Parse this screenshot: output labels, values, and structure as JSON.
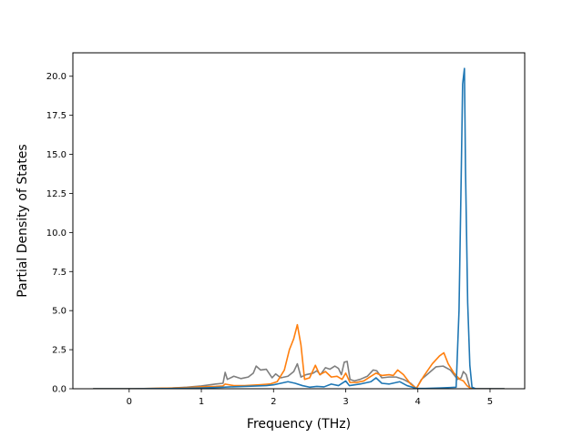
{
  "chart_data": {
    "type": "line",
    "title": "",
    "xlabel": "Frequency (THz)",
    "ylabel": "Partial Density of States",
    "xlim": [
      -0.78,
      5.48
    ],
    "ylim": [
      0,
      21.5
    ],
    "xticks": [
      0,
      1,
      2,
      3,
      4,
      5
    ],
    "yticks": [
      0.0,
      2.5,
      5.0,
      7.5,
      10.0,
      12.5,
      15.0,
      17.5,
      20.0
    ],
    "xtick_labels": [
      "0",
      "1",
      "2",
      "3",
      "4",
      "5"
    ],
    "ytick_labels": [
      "0.0",
      "2.5",
      "5.0",
      "7.5",
      "10.0",
      "12.5",
      "15.0",
      "17.5",
      "20.0"
    ],
    "grid": false,
    "legend": "none",
    "series": [
      {
        "color": "#7f7f7f",
        "points": [
          [
            -0.5,
            0
          ],
          [
            0.0,
            0
          ],
          [
            0.3,
            0.02
          ],
          [
            0.6,
            0.05
          ],
          [
            0.8,
            0.1
          ],
          [
            1.0,
            0.18
          ],
          [
            1.2,
            0.3
          ],
          [
            1.3,
            0.35
          ],
          [
            1.33,
            1.05
          ],
          [
            1.36,
            0.6
          ],
          [
            1.45,
            0.8
          ],
          [
            1.55,
            0.65
          ],
          [
            1.65,
            0.75
          ],
          [
            1.72,
            1.0
          ],
          [
            1.76,
            1.45
          ],
          [
            1.82,
            1.2
          ],
          [
            1.9,
            1.25
          ],
          [
            1.98,
            0.7
          ],
          [
            2.03,
            0.95
          ],
          [
            2.1,
            0.7
          ],
          [
            2.2,
            0.8
          ],
          [
            2.28,
            1.1
          ],
          [
            2.33,
            1.6
          ],
          [
            2.38,
            0.75
          ],
          [
            2.45,
            0.9
          ],
          [
            2.55,
            1.0
          ],
          [
            2.6,
            1.15
          ],
          [
            2.65,
            0.9
          ],
          [
            2.72,
            1.35
          ],
          [
            2.78,
            1.25
          ],
          [
            2.85,
            1.45
          ],
          [
            2.9,
            1.3
          ],
          [
            2.94,
            0.9
          ],
          [
            2.98,
            1.7
          ],
          [
            3.02,
            1.75
          ],
          [
            3.06,
            0.6
          ],
          [
            3.12,
            0.5
          ],
          [
            3.2,
            0.6
          ],
          [
            3.3,
            0.8
          ],
          [
            3.38,
            1.2
          ],
          [
            3.43,
            1.15
          ],
          [
            3.5,
            0.7
          ],
          [
            3.6,
            0.75
          ],
          [
            3.7,
            0.75
          ],
          [
            3.8,
            0.6
          ],
          [
            3.9,
            0.35
          ],
          [
            3.98,
            0.02
          ],
          [
            4.05,
            0.6
          ],
          [
            4.15,
            1.0
          ],
          [
            4.25,
            1.4
          ],
          [
            4.35,
            1.45
          ],
          [
            4.45,
            1.2
          ],
          [
            4.55,
            0.6
          ],
          [
            4.6,
            0.7
          ],
          [
            4.63,
            1.1
          ],
          [
            4.67,
            0.9
          ],
          [
            4.72,
            0.05
          ],
          [
            4.8,
            0
          ],
          [
            5.2,
            0
          ]
        ]
      },
      {
        "color": "#ff7f0e",
        "points": [
          [
            -0.5,
            0
          ],
          [
            0.0,
            0
          ],
          [
            0.3,
            0.02
          ],
          [
            0.6,
            0.05
          ],
          [
            0.8,
            0.08
          ],
          [
            1.0,
            0.12
          ],
          [
            1.2,
            0.15
          ],
          [
            1.3,
            0.18
          ],
          [
            1.33,
            0.3
          ],
          [
            1.45,
            0.2
          ],
          [
            1.6,
            0.2
          ],
          [
            1.8,
            0.25
          ],
          [
            1.95,
            0.3
          ],
          [
            2.05,
            0.45
          ],
          [
            2.15,
            1.2
          ],
          [
            2.22,
            2.5
          ],
          [
            2.28,
            3.2
          ],
          [
            2.33,
            4.1
          ],
          [
            2.38,
            2.8
          ],
          [
            2.43,
            0.6
          ],
          [
            2.5,
            0.7
          ],
          [
            2.58,
            1.5
          ],
          [
            2.64,
            0.9
          ],
          [
            2.72,
            1.1
          ],
          [
            2.8,
            0.75
          ],
          [
            2.88,
            0.8
          ],
          [
            2.95,
            0.6
          ],
          [
            3.0,
            1.0
          ],
          [
            3.06,
            0.4
          ],
          [
            3.15,
            0.4
          ],
          [
            3.25,
            0.5
          ],
          [
            3.35,
            0.8
          ],
          [
            3.42,
            1.0
          ],
          [
            3.5,
            0.85
          ],
          [
            3.6,
            0.9
          ],
          [
            3.66,
            0.85
          ],
          [
            3.72,
            1.2
          ],
          [
            3.8,
            0.9
          ],
          [
            3.9,
            0.3
          ],
          [
            3.98,
            0.02
          ],
          [
            4.08,
            0.8
          ],
          [
            4.2,
            1.6
          ],
          [
            4.3,
            2.1
          ],
          [
            4.36,
            2.3
          ],
          [
            4.42,
            1.6
          ],
          [
            4.5,
            1.0
          ],
          [
            4.58,
            0.6
          ],
          [
            4.63,
            0.5
          ],
          [
            4.68,
            0.2
          ],
          [
            4.73,
            0.02
          ],
          [
            4.8,
            0
          ],
          [
            5.2,
            0
          ]
        ]
      },
      {
        "color": "#1f77b4",
        "points": [
          [
            -0.5,
            0
          ],
          [
            0.0,
            0
          ],
          [
            0.5,
            0.01
          ],
          [
            1.0,
            0.05
          ],
          [
            1.3,
            0.1
          ],
          [
            1.4,
            0.12
          ],
          [
            1.6,
            0.15
          ],
          [
            1.9,
            0.2
          ],
          [
            2.0,
            0.25
          ],
          [
            2.1,
            0.35
          ],
          [
            2.2,
            0.45
          ],
          [
            2.3,
            0.35
          ],
          [
            2.4,
            0.2
          ],
          [
            2.5,
            0.1
          ],
          [
            2.6,
            0.15
          ],
          [
            2.7,
            0.12
          ],
          [
            2.8,
            0.3
          ],
          [
            2.9,
            0.2
          ],
          [
            3.0,
            0.5
          ],
          [
            3.05,
            0.2
          ],
          [
            3.2,
            0.3
          ],
          [
            3.35,
            0.45
          ],
          [
            3.42,
            0.7
          ],
          [
            3.5,
            0.35
          ],
          [
            3.6,
            0.3
          ],
          [
            3.75,
            0.45
          ],
          [
            3.85,
            0.2
          ],
          [
            3.98,
            0.02
          ],
          [
            4.1,
            0.02
          ],
          [
            4.3,
            0.05
          ],
          [
            4.45,
            0.08
          ],
          [
            4.53,
            0.1
          ],
          [
            4.57,
            5.0
          ],
          [
            4.6,
            13.5
          ],
          [
            4.62,
            19.5
          ],
          [
            4.645,
            20.5
          ],
          [
            4.66,
            14.0
          ],
          [
            4.69,
            5.5
          ],
          [
            4.72,
            1.5
          ],
          [
            4.75,
            0.1
          ],
          [
            4.8,
            0
          ],
          [
            5.2,
            0
          ]
        ]
      }
    ]
  }
}
